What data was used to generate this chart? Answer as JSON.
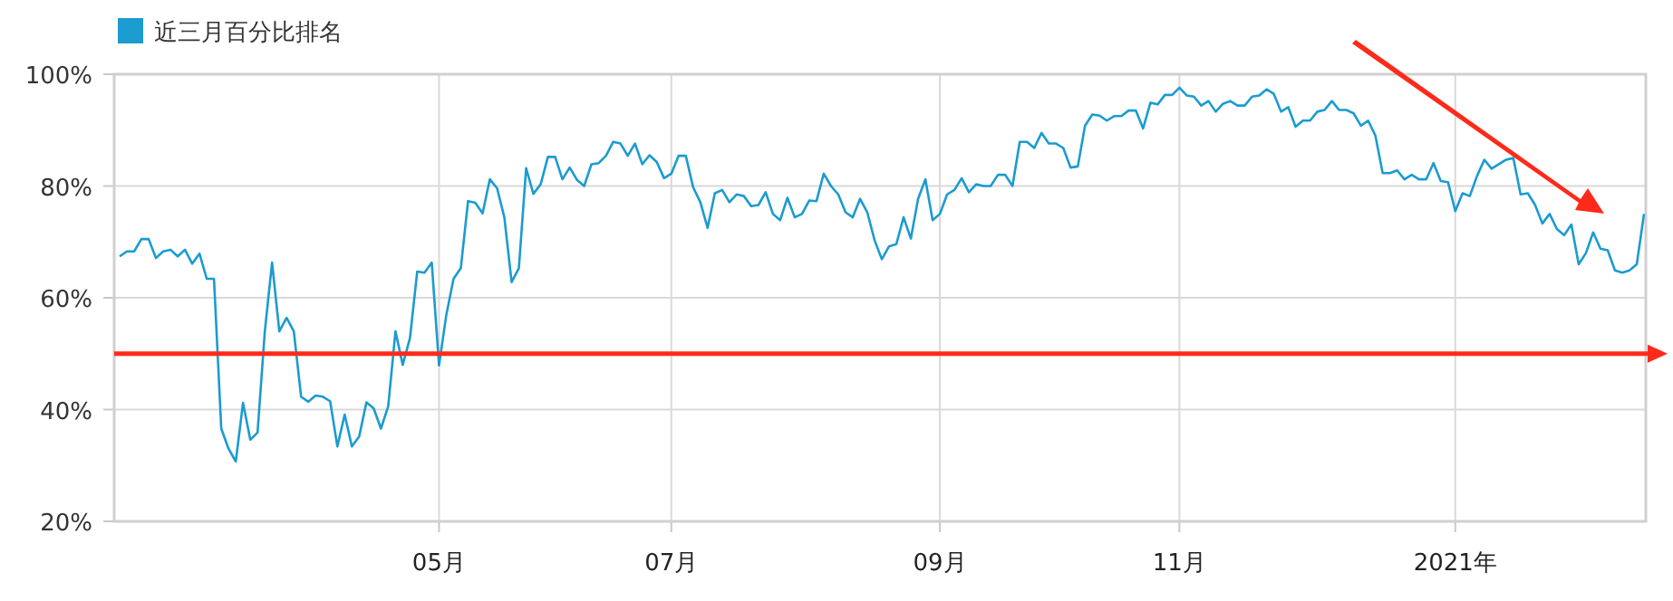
{
  "chart_data": {
    "type": "line",
    "legend": "top left",
    "grid": true,
    "categories": [
      null,
      null,
      null,
      null,
      null,
      null,
      null,
      null,
      null,
      null,
      null,
      null,
      null,
      null,
      null,
      null,
      null,
      null,
      null,
      null,
      null,
      null,
      null,
      null,
      null,
      null,
      null,
      null,
      null,
      null,
      null,
      null,
      null,
      null,
      null,
      null,
      null,
      null,
      null,
      null,
      null,
      null,
      null,
      null,
      "05月",
      null,
      null,
      null,
      null,
      null,
      null,
      null,
      null,
      null,
      null,
      null,
      null,
      null,
      null,
      null,
      null,
      null,
      null,
      null,
      null,
      null,
      null,
      null,
      null,
      null,
      null,
      null,
      null,
      null,
      null,
      null,
      "07月",
      null,
      null,
      null,
      null,
      null,
      null,
      null,
      null,
      null,
      null,
      null,
      null,
      null,
      null,
      null,
      null,
      null,
      null,
      null,
      null,
      null,
      null,
      null,
      null,
      null,
      null,
      null,
      null,
      null,
      null,
      null,
      null,
      null,
      null,
      null,
      null,
      "09月",
      null,
      null,
      null,
      null,
      null,
      null,
      null,
      null,
      null,
      null,
      null,
      null,
      null,
      null,
      null,
      null,
      null,
      null,
      null,
      null,
      null,
      null,
      null,
      null,
      null,
      null,
      null,
      null,
      null,
      null,
      null,
      null,
      "11月",
      null,
      null,
      null,
      null,
      null,
      null,
      null,
      null,
      null,
      null,
      null,
      null,
      null,
      null,
      null,
      null,
      null,
      null,
      null,
      null,
      null,
      null,
      null,
      null,
      null,
      null,
      null,
      null,
      null,
      null,
      null,
      null,
      null,
      null,
      null,
      null,
      null,
      "2021年",
      null,
      null,
      null,
      null,
      null,
      null,
      null,
      null,
      null,
      null,
      null,
      null,
      null,
      null,
      null,
      null,
      null,
      null,
      null,
      null,
      null,
      null,
      null,
      null,
      null,
      null
    ],
    "ylim": [
      20,
      100
    ],
    "yticks": [
      {
        "value": 20,
        "label": "20%"
      },
      {
        "value": 40,
        "label": "40%"
      },
      {
        "value": 60,
        "label": "60%"
      },
      {
        "value": 80,
        "label": "80%"
      },
      {
        "value": 100,
        "label": "100%"
      }
    ],
    "ref_lines": [
      {
        "axis": "y",
        "value": 50,
        "color": "#ff2a1a"
      }
    ],
    "series": [
      {
        "name": "近三月百分比排名",
        "color": "#1b9bd0",
        "values": [
          67.4,
          68.3,
          68.3,
          70.5,
          70.5,
          67.1,
          68.3,
          68.6,
          67.4,
          68.6,
          66.1,
          67.9,
          63.4,
          63.4,
          36.6,
          33.0,
          30.7,
          41.2,
          34.6,
          35.9,
          54.0,
          66.3,
          54.0,
          56.4,
          54.0,
          42.3,
          41.4,
          42.5,
          42.3,
          41.5,
          33.4,
          39.1,
          33.4,
          35.2,
          41.3,
          40.2,
          36.6,
          40.6,
          54.0,
          48.0,
          52.8,
          64.7,
          64.5,
          66.3,
          47.9,
          56.9,
          63.4,
          65.3,
          77.3,
          77.0,
          75.1,
          81.2,
          79.6,
          74.4,
          62.8,
          65.3,
          83.2,
          78.6,
          80.3,
          85.2,
          85.2,
          81.2,
          83.3,
          81.1,
          80.0,
          83.9,
          84.1,
          85.4,
          87.9,
          87.6,
          85.4,
          87.6,
          83.9,
          85.5,
          84.3,
          81.4,
          82.2,
          85.4,
          85.4,
          79.8,
          77.1,
          72.5,
          78.7,
          79.3,
          77.1,
          78.5,
          78.2,
          76.4,
          76.6,
          78.9,
          75.0,
          73.9,
          77.9,
          74.4,
          75.0,
          77.4,
          77.3,
          82.2,
          80.0,
          78.5,
          75.3,
          74.4,
          77.7,
          75.3,
          70.3,
          66.9,
          69.2,
          69.6,
          74.4,
          70.6,
          77.7,
          81.2,
          73.9,
          75.0,
          78.5,
          79.3,
          81.4,
          78.9,
          80.3,
          80.0,
          80.0,
          82.0,
          82.0,
          80.0,
          87.9,
          87.9,
          86.8,
          89.5,
          87.6,
          87.6,
          86.8,
          83.3,
          83.5,
          90.8,
          92.8,
          92.6,
          91.7,
          92.5,
          92.5,
          93.5,
          93.5,
          90.3,
          94.9,
          94.6,
          96.3,
          96.3,
          97.6,
          96.2,
          96.0,
          94.4,
          95.2,
          93.3,
          94.7,
          95.2,
          94.4,
          94.4,
          96.0,
          96.2,
          97.3,
          96.5,
          93.3,
          94.1,
          90.6,
          91.7,
          91.7,
          93.3,
          93.6,
          95.2,
          93.6,
          93.6,
          93.0,
          90.8,
          91.7,
          89.0,
          82.3,
          82.3,
          82.8,
          81.2,
          82.0,
          81.2,
          81.2,
          84.1,
          80.9,
          80.7,
          75.5,
          78.7,
          78.2,
          81.8,
          84.7,
          83.1,
          83.9,
          84.7,
          85.0,
          78.5,
          78.7,
          76.6,
          73.3,
          75.0,
          72.3,
          71.2,
          73.1,
          66.0,
          68.0,
          71.7,
          68.8,
          68.5,
          64.9,
          64.5,
          64.9,
          66.0,
          75.0
        ]
      }
    ]
  }
}
